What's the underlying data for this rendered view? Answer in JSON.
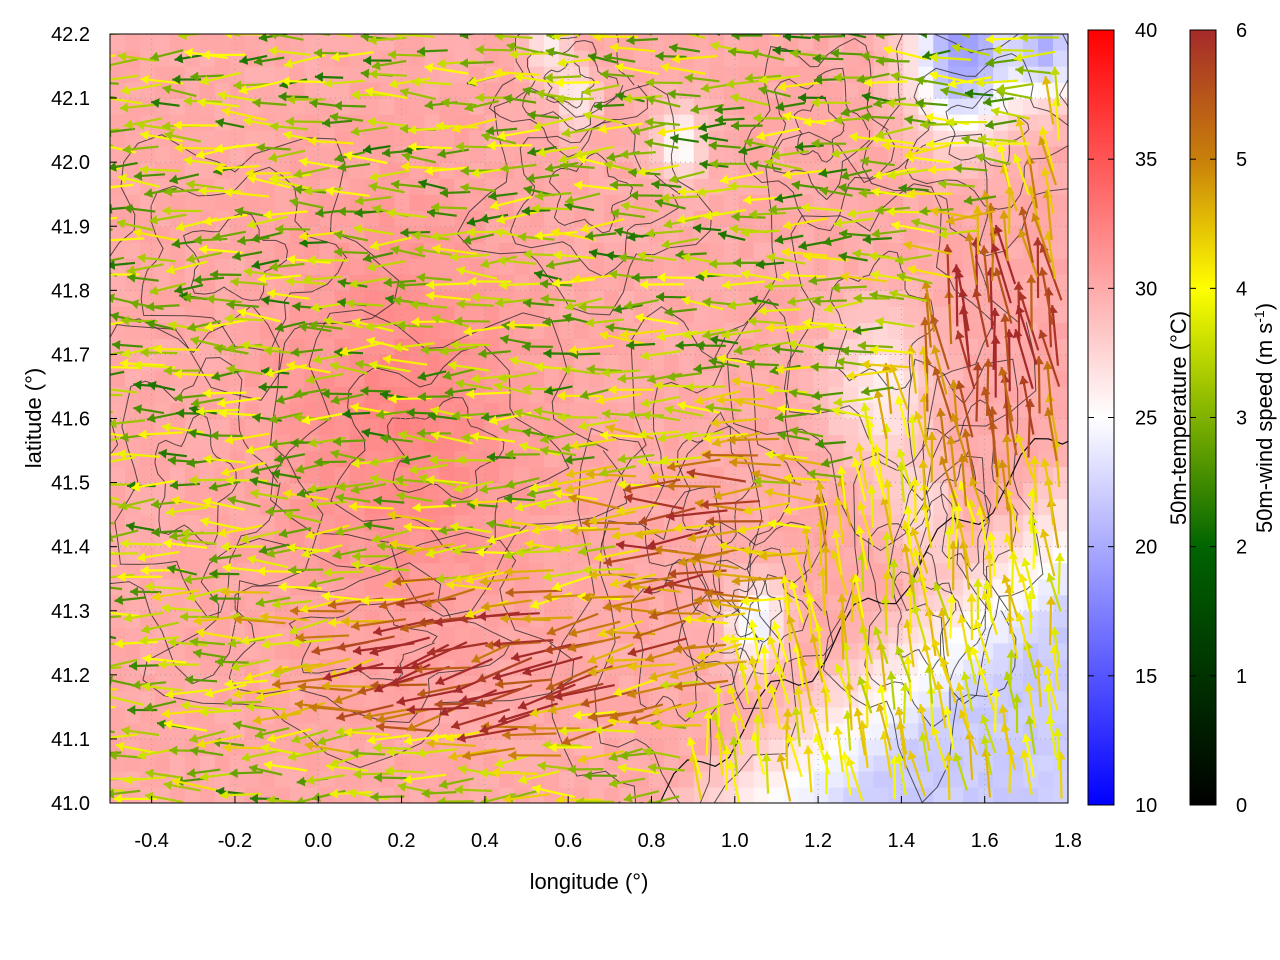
{
  "chart_data": {
    "type": "heatmap",
    "title": "",
    "xlabel": "longitude (°)",
    "ylabel": "latitude (°)",
    "xlim": [
      -0.5,
      1.8
    ],
    "ylim": [
      41.0,
      42.2
    ],
    "xticks": [
      -0.4,
      -0.2,
      0.0,
      0.2,
      0.4,
      0.6,
      0.8,
      1.0,
      1.2,
      1.4,
      1.6,
      1.8
    ],
    "xtick_labels": [
      "-0.4",
      "-0.2",
      "0.0",
      "0.2",
      "0.4",
      "0.6",
      "0.8",
      "1.0",
      "1.2",
      "1.4",
      "1.6",
      "1.8"
    ],
    "yticks": [
      41.0,
      41.1,
      41.2,
      41.3,
      41.4,
      41.5,
      41.6,
      41.7,
      41.8,
      41.9,
      42.0,
      42.1,
      42.2
    ],
    "ytick_labels": [
      "41.0",
      "41.1",
      "41.2",
      "41.3",
      "41.4",
      "41.5",
      "41.6",
      "41.7",
      "41.8",
      "41.9",
      "42.0",
      "42.1",
      "42.2"
    ],
    "grid": true,
    "temperature_field": {
      "label": "50m-temperature (°C)",
      "range": [
        10,
        40
      ],
      "ticks": [
        10,
        15,
        20,
        25,
        30,
        35,
        40
      ],
      "tick_labels": [
        "10",
        "15",
        "20",
        "25",
        "30",
        "35",
        "40"
      ],
      "colors": [
        "#0000ff",
        "#ffffff",
        "#ff0000"
      ],
      "dominant_values": {
        "west_and_north": 30,
        "southeast_coast": 22,
        "northeast_pockets": 17
      }
    },
    "wind_field": {
      "label_base": "50m-wind speed (m s",
      "label_sup": "-1",
      "label_end": ")",
      "range": [
        0,
        6
      ],
      "ticks": [
        0,
        1,
        2,
        3,
        4,
        5,
        6
      ],
      "tick_labels": [
        "0",
        "1",
        "2",
        "3",
        "4",
        "5",
        "6"
      ],
      "colors": [
        "#000000",
        "#006400",
        "#ffff00",
        "#c87f0a",
        "#a52a2a"
      ],
      "prevailing_direction": "westward, veering northward in the southeast"
    },
    "contours": "terrain elevation isolines (unlabeled)"
  }
}
